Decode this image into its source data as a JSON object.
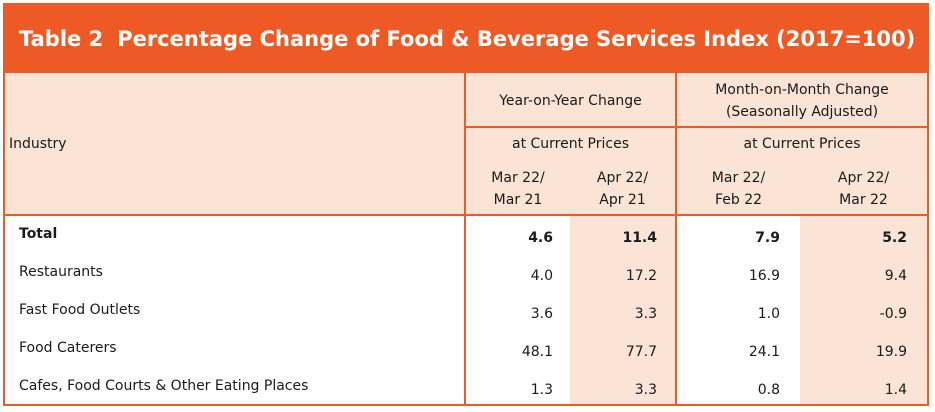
{
  "table": {
    "number": "Table 2",
    "title": "Percentage Change of Food & Beverage Services Index (2017=100)",
    "industry_header": "Industry",
    "groups": [
      {
        "label_line1": "Year-on-Year Change",
        "label_line2": "",
        "sub": "at Current Prices"
      },
      {
        "label_line1": "Month-on-Month Change",
        "label_line2": "(Seasonally Adjusted)",
        "sub": "at Current Prices"
      }
    ],
    "columns": [
      {
        "line1": "Mar 22/",
        "line2": "Mar 21"
      },
      {
        "line1": "Apr 22/",
        "line2": "Apr 21"
      },
      {
        "line1": "Mar 22/",
        "line2": "Feb 22"
      },
      {
        "line1": "Apr 22/",
        "line2": "Mar 22"
      }
    ],
    "rows": [
      {
        "label": "Total",
        "values": [
          "4.6",
          "11.4",
          "7.9",
          "5.2"
        ]
      },
      {
        "label": "Restaurants",
        "values": [
          "4.0",
          "17.2",
          "16.9",
          "9.4"
        ]
      },
      {
        "label": "Fast Food Outlets",
        "values": [
          "3.6",
          "3.3",
          "1.0",
          "-0.9"
        ]
      },
      {
        "label": "Food Caterers",
        "values": [
          "48.1",
          "77.7",
          "24.1",
          "19.9"
        ]
      },
      {
        "label": "Cafes, Food Courts & Other Eating Places",
        "values": [
          "1.3",
          "3.3",
          "0.8",
          "1.4"
        ]
      }
    ]
  },
  "colors": {
    "accent": "#ee5a25",
    "band": "#fbe3d6"
  }
}
